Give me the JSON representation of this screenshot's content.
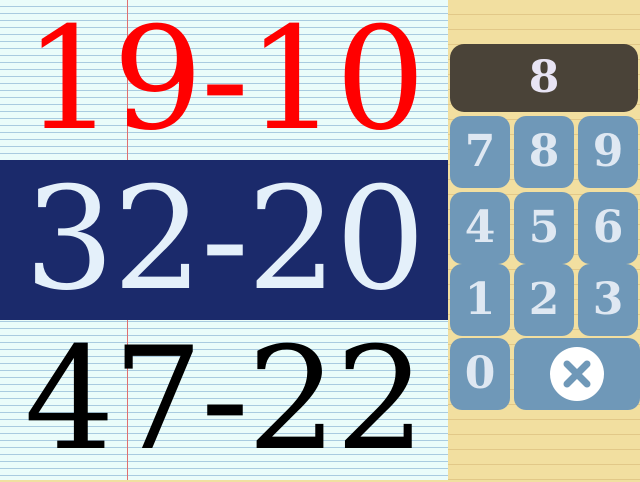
{
  "problems": [
    {
      "text": "19-10",
      "color": "#ff0000",
      "state": "completed"
    },
    {
      "text": "32-20",
      "color": "#e4f0fa",
      "state": "active"
    },
    {
      "text": "47-22",
      "color": "#000000",
      "state": "upcoming"
    }
  ],
  "answer_display": "8",
  "keypad": {
    "keys": [
      "7",
      "8",
      "9",
      "4",
      "5",
      "6",
      "1",
      "2",
      "3",
      "0"
    ],
    "clear_icon": "clear-x-circle-icon"
  },
  "colors": {
    "paper": "#eafcfa",
    "active_row": "#1b2a6b",
    "display": "#4a4338",
    "key": "#6f98b8",
    "pad_background": "#f2dfa0"
  }
}
